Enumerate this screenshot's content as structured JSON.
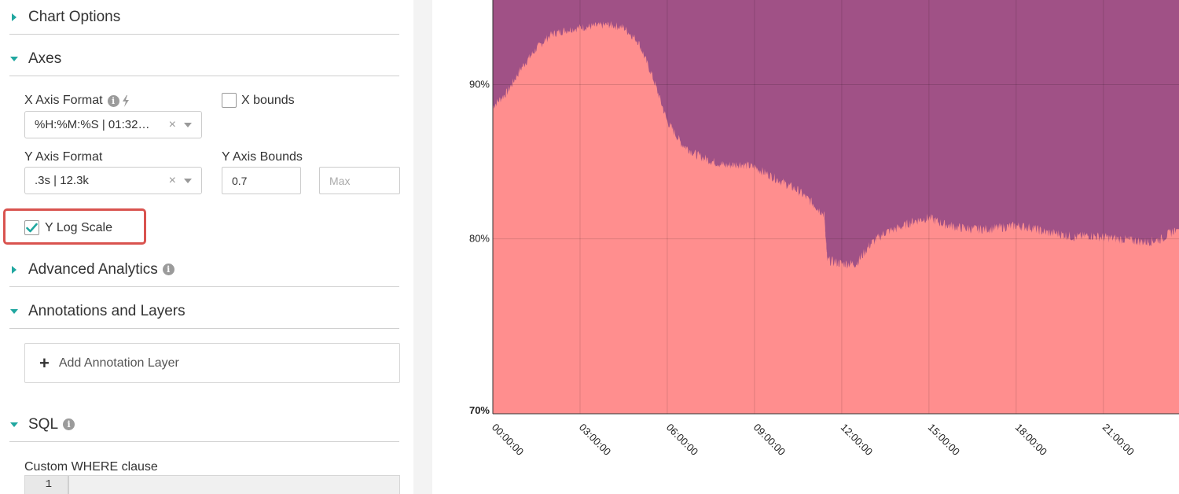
{
  "sidebar": {
    "chart_options": {
      "title": "Chart Options"
    },
    "axes": {
      "title": "Axes",
      "x_axis_format": {
        "label": "X Axis Format",
        "value": "%H:%M:%S | 01:32…"
      },
      "x_bounds": {
        "label": "X bounds",
        "checked": false
      },
      "y_axis_format": {
        "label": "Y Axis Format",
        "value": ".3s | 12.3k"
      },
      "y_axis_bounds": {
        "label": "Y Axis Bounds",
        "min_value": "0.7",
        "max_placeholder": "Max"
      },
      "y_log_scale": {
        "label": "Y Log Scale",
        "checked": true
      }
    },
    "advanced_analytics": {
      "title": "Advanced Analytics"
    },
    "annotations": {
      "title": "Annotations and Layers",
      "add_label": "Add Annotation Layer"
    },
    "sql": {
      "title": "SQL",
      "where_label": "Custom WHERE clause",
      "line_number": "1"
    }
  },
  "colors": {
    "accent": "#20a7a0",
    "highlight": "#d9534f",
    "series_top": "#a05186",
    "series_bottom": "#ff8e8e"
  },
  "chart_data": {
    "type": "area",
    "stacked": true,
    "y_scale": "log",
    "ylim": [
      0.7,
      0.96
    ],
    "y_ticks": [
      {
        "value": 0.9,
        "label": "90%"
      },
      {
        "value": 0.8,
        "label": "80%"
      },
      {
        "value": 0.7,
        "label": "70%"
      }
    ],
    "x_ticks": [
      "00:00:00",
      "03:00:00",
      "06:00:00",
      "09:00:00",
      "12:00:00",
      "15:00:00",
      "18:00:00",
      "21:00:00"
    ],
    "grid": true,
    "series": [
      {
        "values_by_hour": [
          [
            0,
            0.885
          ],
          [
            0.5,
            0.895
          ],
          [
            1,
            0.912
          ],
          [
            1.5,
            0.925
          ],
          [
            2,
            0.935
          ],
          [
            2.5,
            0.938
          ],
          [
            3,
            0.94
          ],
          [
            3.5,
            0.941
          ],
          [
            4,
            0.942
          ],
          [
            4.5,
            0.94
          ],
          [
            5,
            0.93
          ],
          [
            5.5,
            0.905
          ],
          [
            6,
            0.875
          ],
          [
            6.5,
            0.86
          ],
          [
            7,
            0.853
          ],
          [
            7.5,
            0.849
          ],
          [
            8,
            0.846
          ],
          [
            8.5,
            0.847
          ],
          [
            9,
            0.845
          ],
          [
            9.5,
            0.84
          ],
          [
            10,
            0.835
          ],
          [
            10.5,
            0.83
          ],
          [
            11,
            0.822
          ],
          [
            11.4,
            0.815
          ],
          [
            11.5,
            0.787
          ],
          [
            12,
            0.785
          ],
          [
            12.5,
            0.785
          ],
          [
            13,
            0.797
          ],
          [
            13.5,
            0.804
          ],
          [
            14,
            0.807
          ],
          [
            14.5,
            0.811
          ],
          [
            15,
            0.813
          ],
          [
            15.5,
            0.809
          ],
          [
            16,
            0.807
          ],
          [
            16.5,
            0.806
          ],
          [
            17,
            0.806
          ],
          [
            17.5,
            0.807
          ],
          [
            18,
            0.808
          ],
          [
            18.5,
            0.807
          ],
          [
            19,
            0.804
          ],
          [
            19.5,
            0.803
          ],
          [
            20,
            0.801
          ],
          [
            20.5,
            0.802
          ],
          [
            21,
            0.801
          ],
          [
            21.5,
            0.8
          ],
          [
            22,
            0.799
          ],
          [
            22.5,
            0.798
          ],
          [
            23,
            0.8
          ],
          [
            23.5,
            0.806
          ]
        ]
      }
    ]
  }
}
